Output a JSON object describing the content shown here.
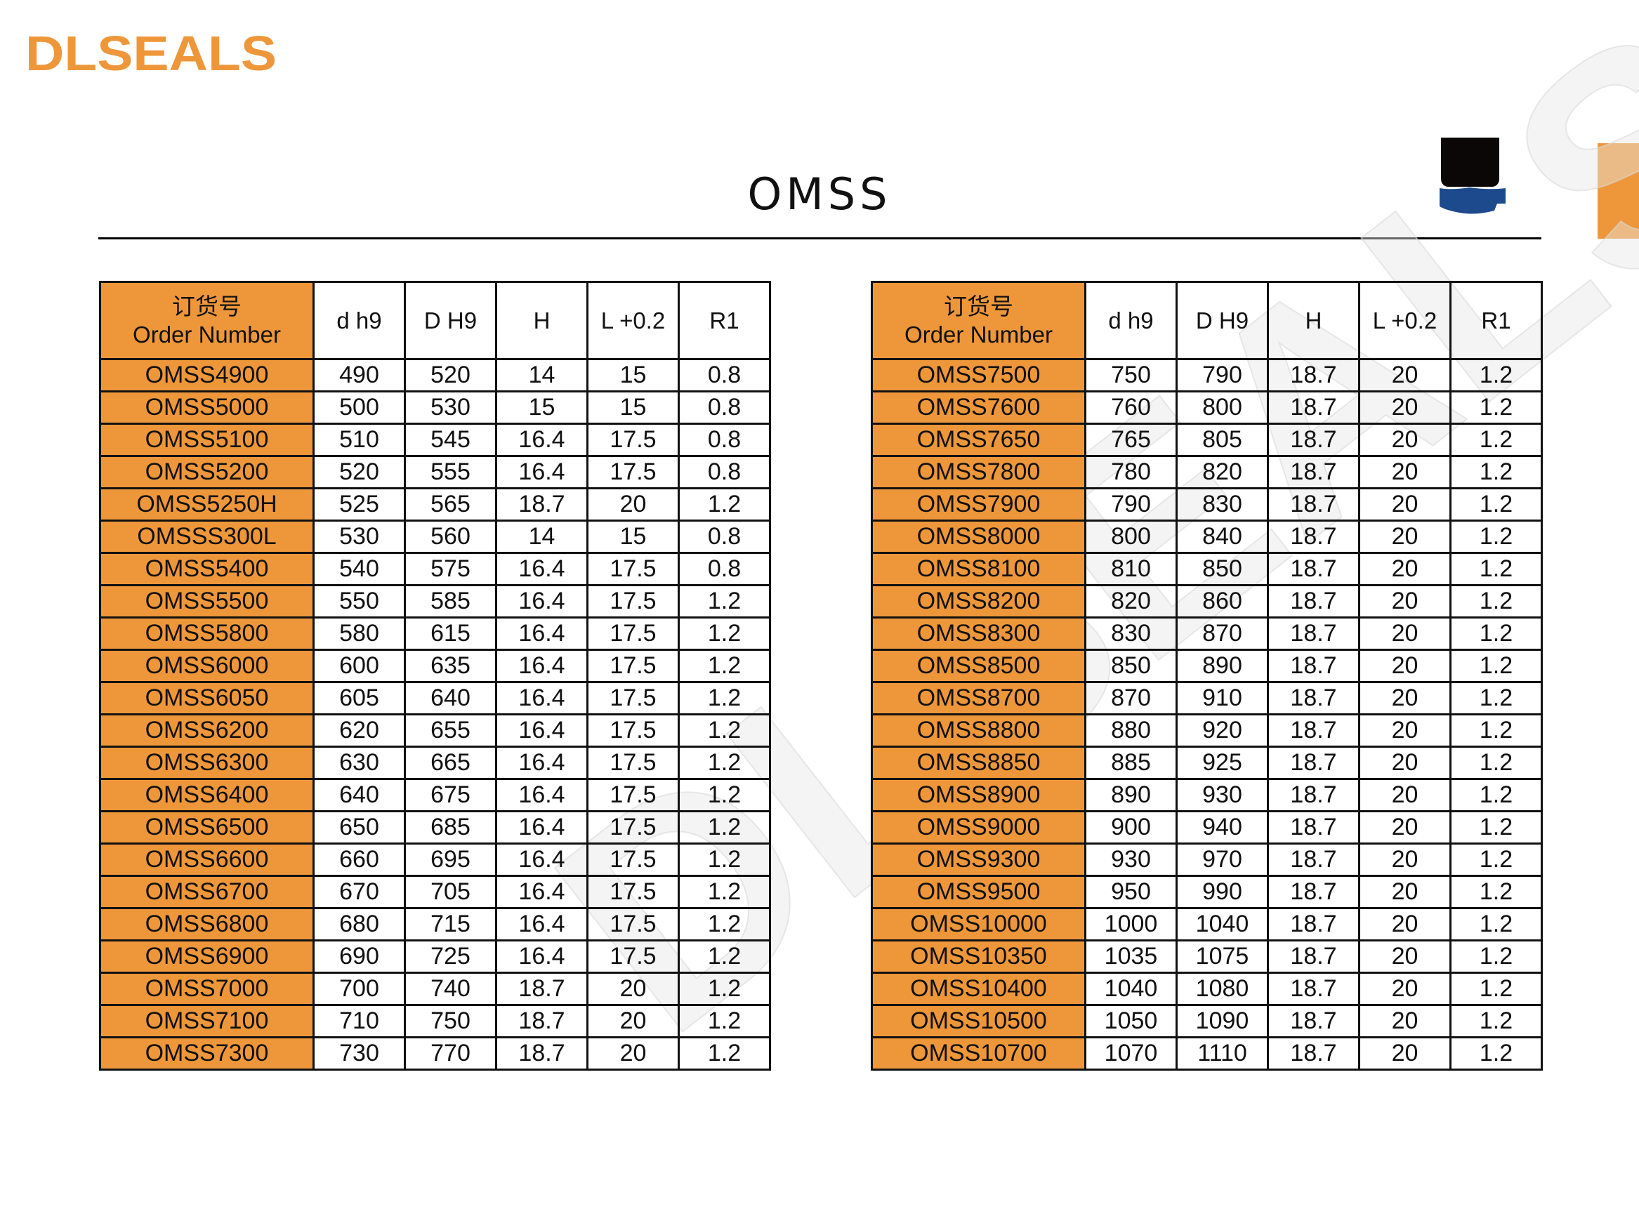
{
  "brand": {
    "logo_text": "DLSEALS",
    "accent_color": "#EE973A",
    "watermark_text": "DLSEALS"
  },
  "title": "OMSS",
  "product_icon": "seal-cross-section-icon",
  "headers": {
    "order_cn": "订货号",
    "order_en": "Order Number",
    "cols": [
      "d h9",
      "D H9",
      "H",
      "L +0.2",
      "R1"
    ]
  },
  "left_table": [
    [
      "OMSS4900",
      "490",
      "520",
      "14",
      "15",
      "0.8"
    ],
    [
      "OMSS5000",
      "500",
      "530",
      "15",
      "15",
      "0.8"
    ],
    [
      "OMSS5100",
      "510",
      "545",
      "16.4",
      "17.5",
      "0.8"
    ],
    [
      "OMSS5200",
      "520",
      "555",
      "16.4",
      "17.5",
      "0.8"
    ],
    [
      "OMSS5250H",
      "525",
      "565",
      "18.7",
      "20",
      "1.2"
    ],
    [
      "OMSSS300L",
      "530",
      "560",
      "14",
      "15",
      "0.8"
    ],
    [
      "OMSS5400",
      "540",
      "575",
      "16.4",
      "17.5",
      "0.8"
    ],
    [
      "OMSS5500",
      "550",
      "585",
      "16.4",
      "17.5",
      "1.2"
    ],
    [
      "OMSS5800",
      "580",
      "615",
      "16.4",
      "17.5",
      "1.2"
    ],
    [
      "OMSS6000",
      "600",
      "635",
      "16.4",
      "17.5",
      "1.2"
    ],
    [
      "OMSS6050",
      "605",
      "640",
      "16.4",
      "17.5",
      "1.2"
    ],
    [
      "OMSS6200",
      "620",
      "655",
      "16.4",
      "17.5",
      "1.2"
    ],
    [
      "OMSS6300",
      "630",
      "665",
      "16.4",
      "17.5",
      "1.2"
    ],
    [
      "OMSS6400",
      "640",
      "675",
      "16.4",
      "17.5",
      "1.2"
    ],
    [
      "OMSS6500",
      "650",
      "685",
      "16.4",
      "17.5",
      "1.2"
    ],
    [
      "OMSS6600",
      "660",
      "695",
      "16.4",
      "17.5",
      "1.2"
    ],
    [
      "OMSS6700",
      "670",
      "705",
      "16.4",
      "17.5",
      "1.2"
    ],
    [
      "OMSS6800",
      "680",
      "715",
      "16.4",
      "17.5",
      "1.2"
    ],
    [
      "OMSS6900",
      "690",
      "725",
      "16.4",
      "17.5",
      "1.2"
    ],
    [
      "OMSS7000",
      "700",
      "740",
      "18.7",
      "20",
      "1.2"
    ],
    [
      "OMSS7100",
      "710",
      "750",
      "18.7",
      "20",
      "1.2"
    ],
    [
      "OMSS7300",
      "730",
      "770",
      "18.7",
      "20",
      "1.2"
    ]
  ],
  "right_table": [
    [
      "OMSS7500",
      "750",
      "790",
      "18.7",
      "20",
      "1.2"
    ],
    [
      "OMSS7600",
      "760",
      "800",
      "18.7",
      "20",
      "1.2"
    ],
    [
      "OMSS7650",
      "765",
      "805",
      "18.7",
      "20",
      "1.2"
    ],
    [
      "OMSS7800",
      "780",
      "820",
      "18.7",
      "20",
      "1.2"
    ],
    [
      "OMSS7900",
      "790",
      "830",
      "18.7",
      "20",
      "1.2"
    ],
    [
      "OMSS8000",
      "800",
      "840",
      "18.7",
      "20",
      "1.2"
    ],
    [
      "OMSS8100",
      "810",
      "850",
      "18.7",
      "20",
      "1.2"
    ],
    [
      "OMSS8200",
      "820",
      "860",
      "18.7",
      "20",
      "1.2"
    ],
    [
      "OMSS8300",
      "830",
      "870",
      "18.7",
      "20",
      "1.2"
    ],
    [
      "OMSS8500",
      "850",
      "890",
      "18.7",
      "20",
      "1.2"
    ],
    [
      "OMSS8700",
      "870",
      "910",
      "18.7",
      "20",
      "1.2"
    ],
    [
      "OMSS8800",
      "880",
      "920",
      "18.7",
      "20",
      "1.2"
    ],
    [
      "OMSS8850",
      "885",
      "925",
      "18.7",
      "20",
      "1.2"
    ],
    [
      "OMSS8900",
      "890",
      "930",
      "18.7",
      "20",
      "1.2"
    ],
    [
      "OMSS9000",
      "900",
      "940",
      "18.7",
      "20",
      "1.2"
    ],
    [
      "OMSS9300",
      "930",
      "970",
      "18.7",
      "20",
      "1.2"
    ],
    [
      "OMSS9500",
      "950",
      "990",
      "18.7",
      "20",
      "1.2"
    ],
    [
      "OMSS10000",
      "1000",
      "1040",
      "18.7",
      "20",
      "1.2"
    ],
    [
      "OMSS10350",
      "1035",
      "1075",
      "18.7",
      "20",
      "1.2"
    ],
    [
      "OMSS10400",
      "1040",
      "1080",
      "18.7",
      "20",
      "1.2"
    ],
    [
      "OMSS10500",
      "1050",
      "1090",
      "18.7",
      "20",
      "1.2"
    ],
    [
      "OMSS10700",
      "1070",
      "1110",
      "18.7",
      "20",
      "1.2"
    ]
  ]
}
